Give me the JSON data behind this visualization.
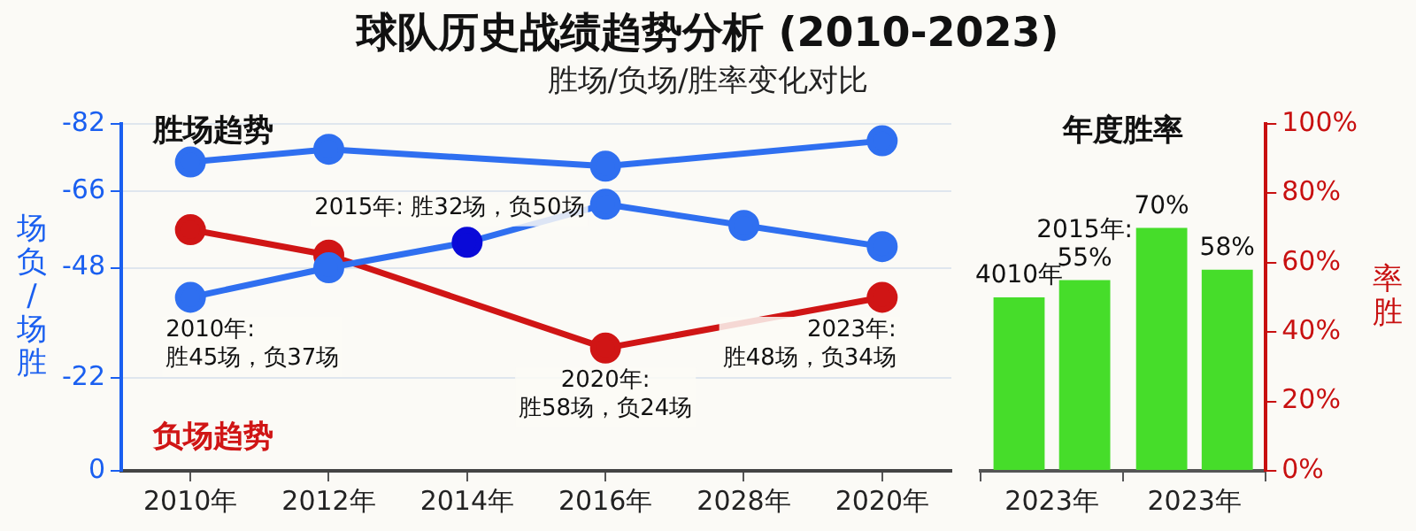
{
  "chart_data": [
    {
      "type": "line",
      "title": "球队历史战绩趋势分析 (2010-2023)",
      "subtitle": "胜场/负场/胜率变化对比",
      "ylabel": "场负/场胜",
      "categories": [
        "2010年",
        "2012年",
        "2014年",
        "2016年",
        "2028年",
        "2020年"
      ],
      "series": [
        {
          "name": "胜场趋势",
          "color": "#2f6ff0",
          "values": [
            -73,
            -76,
            null,
            -72,
            null,
            -78
          ]
        },
        {
          "color": "#2f6ff0",
          "colors": [
            "#2f6ff0",
            "#2f6ff0",
            "#0a0ad8",
            "#2f6ff0",
            "#2f6ff0",
            "#2f6ff0"
          ],
          "values": [
            -41,
            -48,
            -54,
            -63,
            -58,
            -53
          ]
        },
        {
          "name": "负场趋势",
          "color": "#d01515",
          "values": [
            -57,
            -51,
            null,
            -29,
            null,
            -41
          ]
        }
      ],
      "ylim": [
        0,
        -82
      ],
      "yticks": [
        0,
        -22,
        -48,
        -66,
        -82
      ],
      "grid": "y",
      "marker": "circle",
      "line_style": "solid",
      "annotations": [
        {
          "text": "2010年:\n胜45场，负37场",
          "x": "2010年",
          "y": -41
        },
        {
          "text": "2015年: 胜32场，负50场",
          "x": "2014年",
          "y": -54
        },
        {
          "text": "2020年:\n胜58场，负24场",
          "x": "2016年",
          "y": -29
        },
        {
          "text": "2023年:\n胜48场，负34场",
          "x": "2020年",
          "y": -41
        }
      ]
    },
    {
      "type": "bar",
      "title": "年度胜率",
      "y2label": "率胜",
      "categories": [
        "2023年",
        "2023年"
      ],
      "series": [
        {
          "color": "#46dd2a",
          "axis": "y2",
          "values": [
            50,
            70
          ],
          "value_labels": [
            null,
            "70%"
          ]
        },
        {
          "color": "#46dd2a",
          "axis": "y2",
          "values": [
            55,
            58
          ],
          "value_labels": [
            "2015年:\n55%",
            "58%"
          ]
        }
      ],
      "annotations": [
        "4010年"
      ],
      "y2lim": [
        0,
        100
      ],
      "y2ticks": [
        {
          "value": 0,
          "label": "0%"
        },
        {
          "value": 20,
          "label": "20%"
        },
        {
          "value": 40,
          "label": "40%"
        },
        {
          "value": 60,
          "label": "60%"
        },
        {
          "value": 80,
          "label": "80%"
        },
        {
          "value": 100,
          "label": "100%"
        }
      ]
    }
  ]
}
